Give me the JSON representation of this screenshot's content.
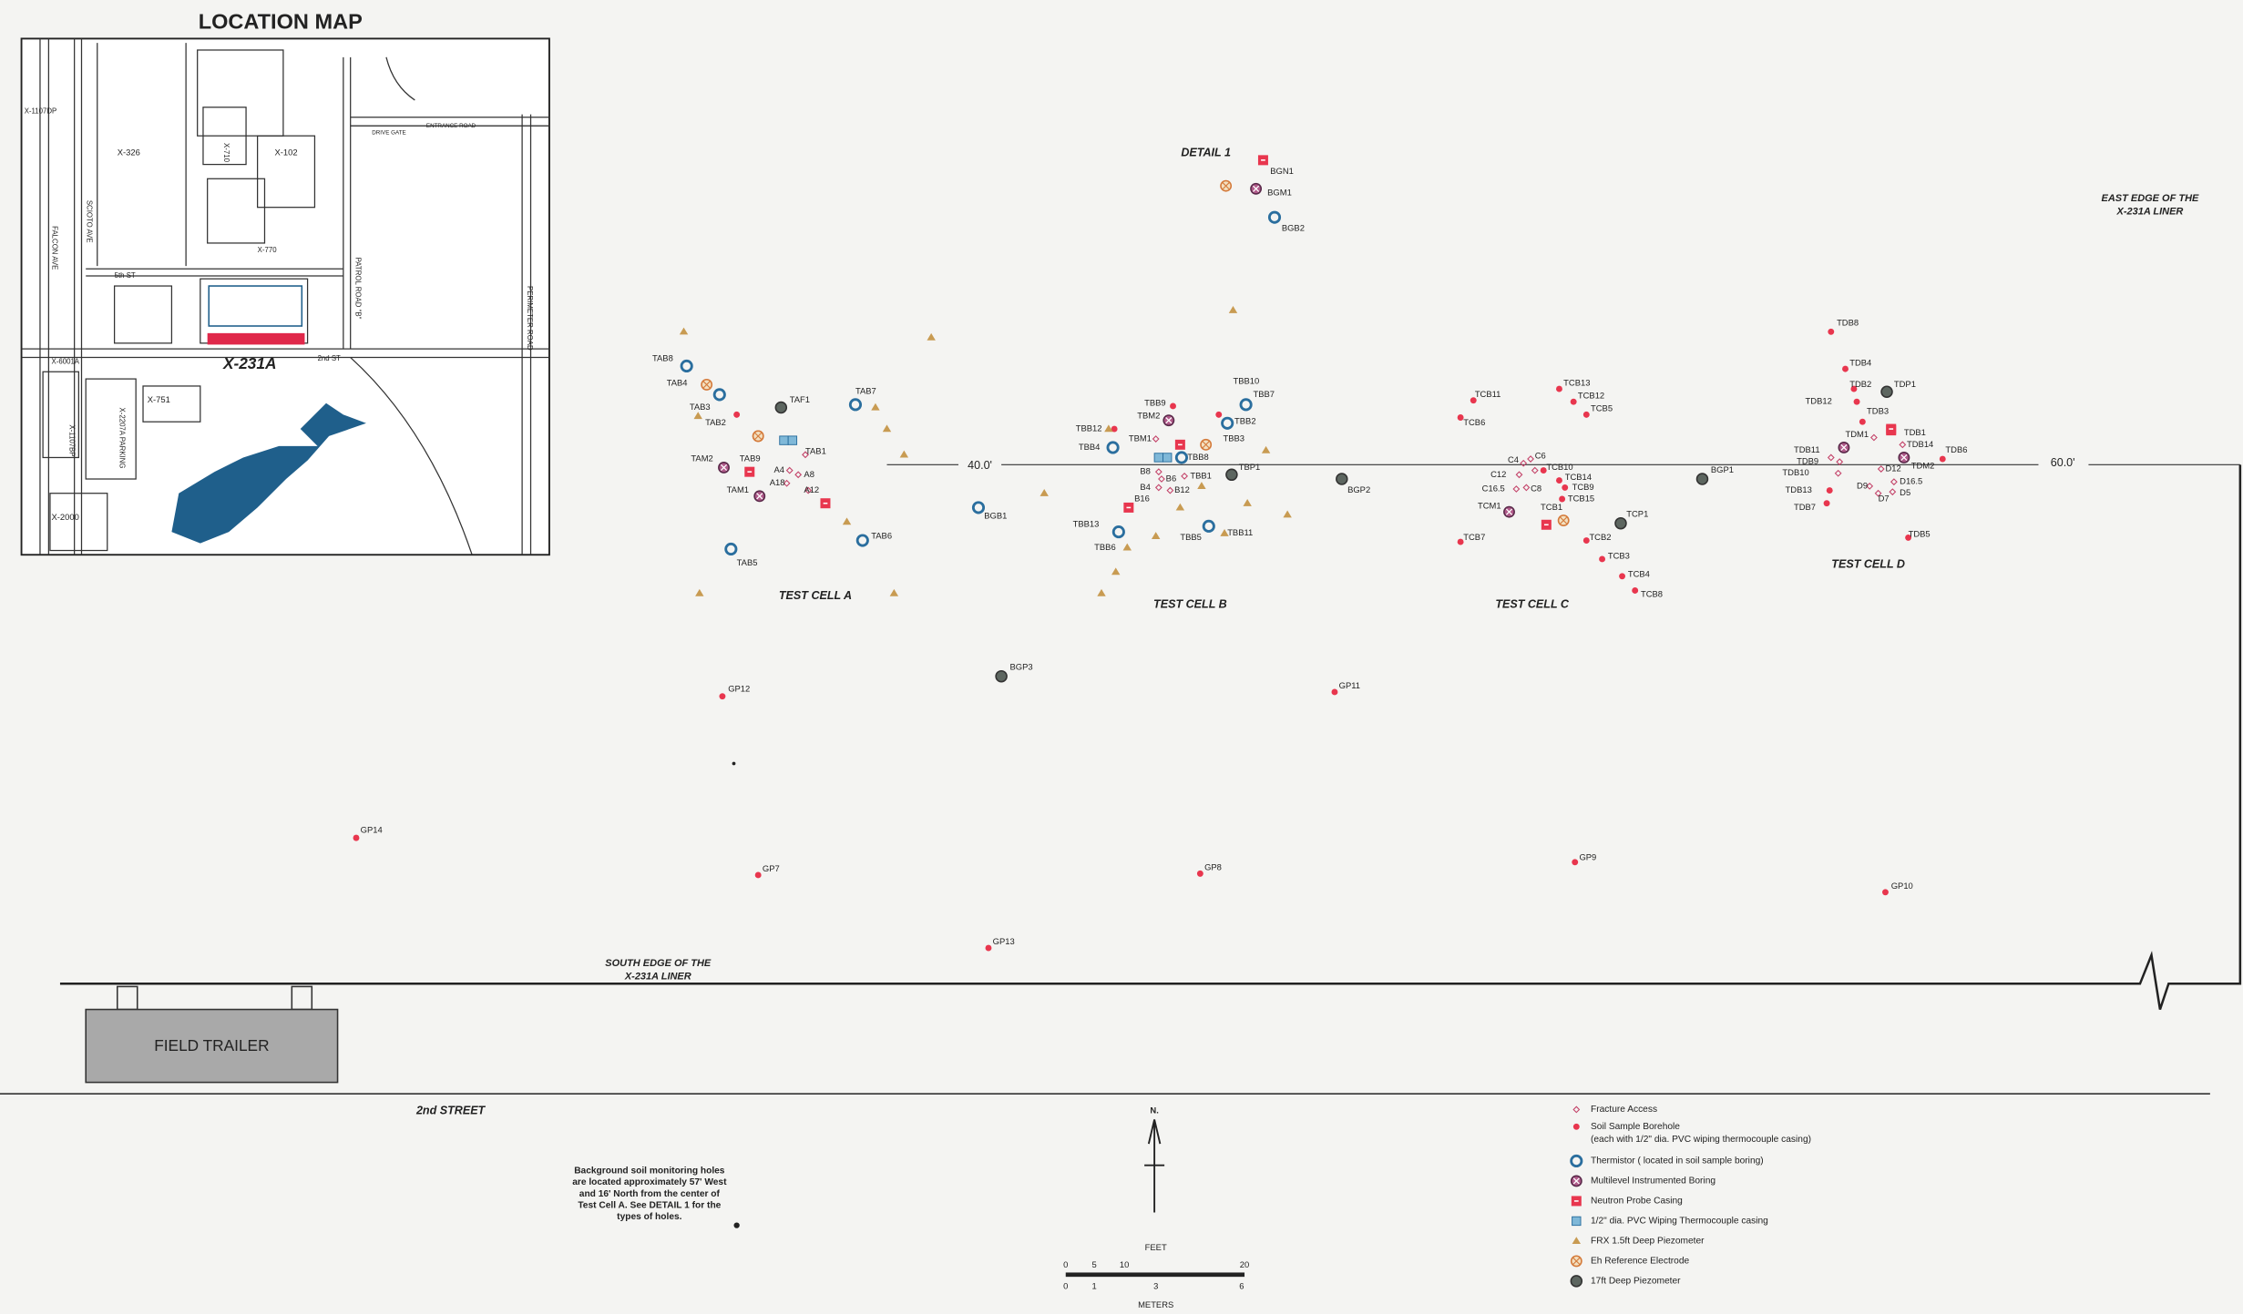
{
  "location_map": {
    "title": "LOCATION MAP",
    "labels": [
      "X-1107DP",
      "X-326",
      "SCIOTO AVE",
      "FALCON AVE",
      "X-710",
      "X-102",
      "X-770",
      "5th ST",
      "2nd ST",
      "X-231A",
      "X-6001A",
      "X-2207A PARKING",
      "X-751",
      "X-1107BP",
      "X-2000",
      "DRIVE GATE",
      "ENTRANCE ROAD",
      "PATROL ROAD \"B\"",
      "PERIMETER ROAD"
    ]
  },
  "site_map": {
    "detail": "DETAIL 1",
    "east_edge": [
      "EAST EDGE OF THE",
      "X-231A LINER"
    ],
    "south_edge": [
      "SOUTH EDGE OF THE",
      "X-231A LINER"
    ],
    "test_cells": [
      "TEST CELL A",
      "TEST CELL B",
      "TEST CELL C",
      "TEST CELL D"
    ],
    "dimensions": [
      "40.0'",
      "60.0'"
    ],
    "field_trailer": "FIELD TRAILER",
    "street": "2nd STREET",
    "points": [
      "BGN1",
      "BGM1",
      "BGB2",
      "TAB8",
      "TAB4",
      "TAB3",
      "TAB2",
      "TAF1",
      "TAB7",
      "TAB9",
      "TAB1",
      "TAM2",
      "A4",
      "A8",
      "A18",
      "A12",
      "TAM1",
      "TAB6",
      "TAB5",
      "BGB1",
      "GP12",
      "BGP3",
      "TBB10",
      "TBB7",
      "TBB9",
      "TBM2",
      "TBB2",
      "TBB12",
      "TBM1",
      "TBB3",
      "TBB4",
      "TBB8",
      "TBP1",
      "B8",
      "B6",
      "TBB1",
      "B4",
      "B12",
      "B16",
      "TBB13",
      "TBB6",
      "TBB5",
      "TBB11",
      "BGP2",
      "GP11",
      "TCB11",
      "TCB6",
      "TCB13",
      "TCB12",
      "TCB5",
      "C4",
      "C6",
      "C12",
      "C16.5",
      "C8",
      "TCB10",
      "TCB14",
      "TCB9",
      "TCB15",
      "TCM1",
      "TCB1",
      "TCP1",
      "TCB2",
      "TCB7",
      "TCB3",
      "TCB4",
      "TCB8",
      "BGP1",
      "GP9",
      "TDB8",
      "TDB4",
      "TDB2",
      "TDP1",
      "TDB12",
      "TDB3",
      "TDB1",
      "TDM1",
      "TDB14",
      "TDB11",
      "TDB6",
      "TDB9",
      "D12",
      "TDM2",
      "D16.5",
      "TDB10",
      "D9",
      "D7",
      "D5",
      "TDB13",
      "TDB7",
      "TDB5",
      "GP10",
      "GP14",
      "GP7",
      "GP8",
      "GP13"
    ]
  },
  "note": [
    "Background soil monitoring holes",
    "are located approximately 57' West",
    "and 16' North from the center of",
    "Test Cell A.  See DETAIL 1 for the",
    "types of holes."
  ],
  "north": "N.",
  "scale": {
    "feet_label": "FEET",
    "feet_ticks": [
      0,
      5,
      10,
      20
    ],
    "meters_label": "METERS",
    "meter_ticks": [
      0,
      1,
      3,
      6
    ]
  },
  "legend": [
    "Fracture Access",
    "Soil Sample Borehole",
    "(each with 1/2\" dia. PVC wiping thermocouple casing)",
    "Thermistor ( located in soil sample boring)",
    "Multilevel Instrumented Boring",
    "Neutron Probe Casing",
    "1/2\" dia. PVC Wiping Thermocouple casing",
    "FRX 1.5ft Deep Piezometer",
    "Eh Reference Electrode",
    "17ft Deep Piezometer"
  ]
}
